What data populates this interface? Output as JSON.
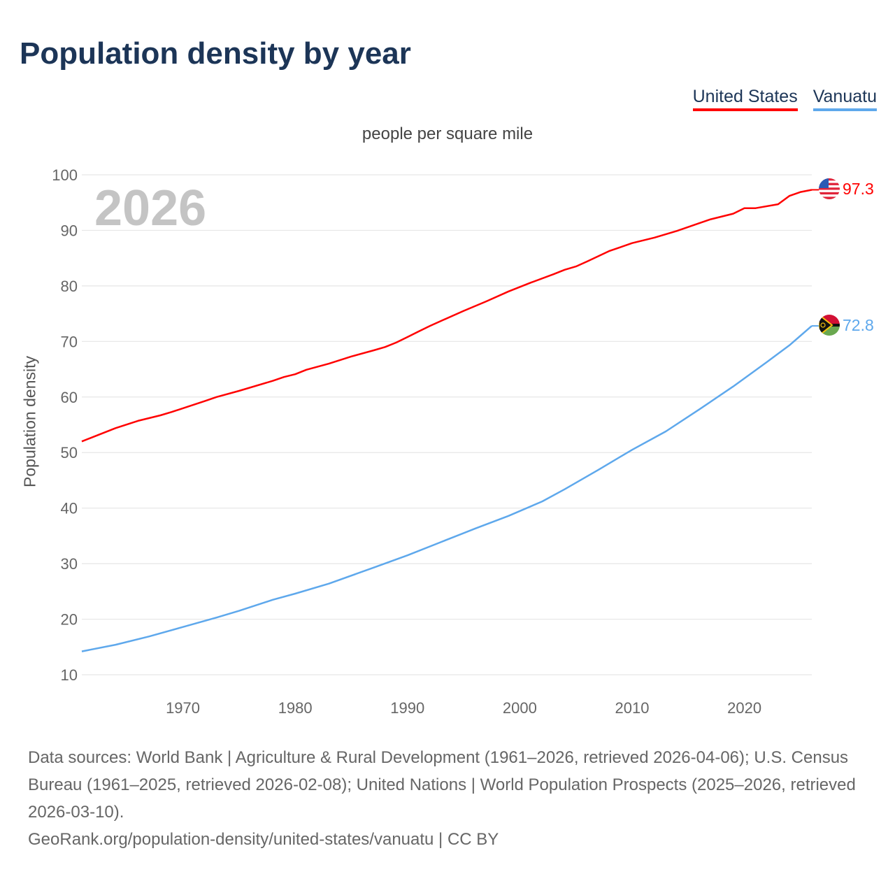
{
  "title": "Population density by year",
  "legend": [
    {
      "label": "United States",
      "color": "#ff0000"
    },
    {
      "label": "Vanuatu",
      "color": "#5ea8ec"
    }
  ],
  "footer": {
    "sources": "Data sources: World Bank | Agriculture & Rural Development (1961–2026, retrieved 2026-04-06); U.S. Census Bureau (1961–2025, retrieved 2026-02-08); United Nations | World Population Prospects (2025–2026, retrieved 2026-03-10).",
    "link": "GeoRank.org/population-density/united-states/vanuatu | CC BY"
  },
  "chart_data": {
    "type": "line",
    "title": "Population density by year",
    "subtitle": "people per square mile",
    "xlabel": "",
    "ylabel": "Population density",
    "year_label": "2026",
    "xlim": [
      1961,
      2026
    ],
    "ylim": [
      10,
      100
    ],
    "xticks": [
      1970,
      1980,
      1990,
      2000,
      2010,
      2020
    ],
    "yticks": [
      10,
      20,
      30,
      40,
      50,
      60,
      70,
      80,
      90,
      100
    ],
    "grid": true,
    "legend_position": "top-right",
    "series": [
      {
        "name": "United States",
        "color": "#ff0000",
        "end_label": "97.3",
        "flag": "us",
        "x": [
          1961,
          1964,
          1966,
          1968,
          1969,
          1972,
          1973,
          1975,
          1978,
          1979,
          1980,
          1981,
          1983,
          1985,
          1987,
          1988,
          1989,
          1990,
          1991,
          1992,
          1993,
          1995,
          1997,
          1999,
          2001,
          2003,
          2004,
          2005,
          2006,
          2008,
          2009,
          2010,
          2012,
          2014,
          2016,
          2017,
          2018,
          2019,
          2020,
          2021,
          2023,
          2024,
          2025,
          2026
        ],
        "y": [
          52.0,
          54.4,
          55.7,
          56.7,
          57.3,
          59.3,
          60.0,
          61.1,
          62.9,
          63.6,
          64.1,
          64.9,
          66.0,
          67.3,
          68.4,
          69.0,
          69.8,
          70.8,
          71.8,
          72.8,
          73.7,
          75.5,
          77.2,
          79.0,
          80.6,
          82.1,
          82.9,
          83.5,
          84.4,
          86.3,
          87.0,
          87.7,
          88.7,
          89.9,
          91.3,
          92.0,
          92.5,
          93.0,
          94.0,
          94.0,
          94.7,
          96.2,
          96.9,
          97.3
        ]
      },
      {
        "name": "Vanuatu",
        "color": "#5ea8ec",
        "end_label": "72.8",
        "flag": "vu",
        "x": [
          1961,
          1964,
          1967,
          1970,
          1973,
          1975,
          1978,
          1980,
          1983,
          1987,
          1990,
          1993,
          1996,
          1999,
          2002,
          2004,
          2007,
          2010,
          2013,
          2016,
          2019,
          2022,
          2024,
          2026
        ],
        "y": [
          14.2,
          15.4,
          16.9,
          18.6,
          20.3,
          21.5,
          23.5,
          24.6,
          26.4,
          29.3,
          31.5,
          33.9,
          36.3,
          38.6,
          41.2,
          43.4,
          46.9,
          50.5,
          53.8,
          57.8,
          61.9,
          66.3,
          69.3,
          72.8
        ]
      }
    ]
  }
}
